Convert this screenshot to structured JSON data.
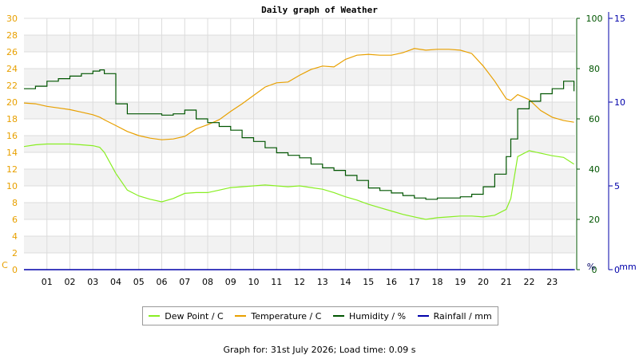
{
  "title": "Daily graph of Weather",
  "footer": "Graph for: 31st July 2026; Load time: 0.09 s",
  "legend": {
    "dew_point": "Dew Point / C",
    "temperature": "Temperature / C",
    "humidity": "Humidity / %",
    "rainfall": "Rainfall / mm"
  },
  "colors": {
    "dew_point": "#88ee22",
    "temperature": "#e8a000",
    "humidity": "#005500",
    "rainfall": "#0000aa",
    "band": "#f2f2f2",
    "grid": "#dcdcdc"
  },
  "chart_data": {
    "type": "line",
    "title": "Daily graph of Weather",
    "x": [
      0,
      0.5,
      1,
      1.5,
      2,
      2.5,
      3,
      3.3,
      3.5,
      4,
      4.5,
      5,
      5.5,
      6,
      6.5,
      7,
      7.5,
      8,
      8.5,
      9,
      9.5,
      10,
      10.5,
      11,
      11.5,
      12,
      12.5,
      13,
      13.5,
      14,
      14.5,
      15,
      15.5,
      16,
      16.5,
      17,
      17.5,
      18,
      18.5,
      19,
      19.5,
      20,
      20.5,
      21,
      21.2,
      21.5,
      22,
      22.5,
      23,
      23.5,
      23.95
    ],
    "x_ticks": [
      "01",
      "02",
      "03",
      "04",
      "05",
      "06",
      "07",
      "08",
      "09",
      "10",
      "11",
      "12",
      "13",
      "14",
      "15",
      "16",
      "17",
      "18",
      "19",
      "20",
      "21",
      "22",
      "23"
    ],
    "x_range": [
      0,
      24
    ],
    "axes": {
      "left": {
        "unit": "C",
        "range": [
          0,
          30
        ],
        "ticks": [
          "0",
          "2",
          "4",
          "6",
          "8",
          "10",
          "12",
          "14",
          "16",
          "18",
          "20",
          "22",
          "24",
          "26",
          "28",
          "30"
        ]
      },
      "right_humidity": {
        "unit": "%",
        "range": [
          0,
          100
        ],
        "ticks": [
          "0",
          "20",
          "40",
          "60",
          "80",
          "100"
        ]
      },
      "right_rainfall": {
        "unit": "mm",
        "range": [
          0,
          15
        ],
        "ticks": [
          "0",
          "5",
          "10",
          "15"
        ]
      }
    },
    "series": [
      {
        "name": "Dew Point / C",
        "axis": "left",
        "color": "#88ee22",
        "values": [
          14.7,
          14.9,
          15.0,
          15.0,
          15.0,
          14.9,
          14.8,
          14.6,
          14.0,
          11.5,
          9.5,
          8.8,
          8.4,
          8.1,
          8.5,
          9.1,
          9.2,
          9.2,
          9.5,
          9.8,
          9.9,
          10.0,
          10.1,
          10.0,
          9.9,
          10.0,
          9.8,
          9.6,
          9.2,
          8.7,
          8.3,
          7.8,
          7.4,
          7.0,
          6.6,
          6.3,
          6.0,
          6.2,
          6.3,
          6.4,
          6.4,
          6.3,
          6.5,
          7.2,
          8.5,
          13.5,
          14.2,
          13.9,
          13.6,
          13.4,
          12.6
        ]
      },
      {
        "name": "Temperature / C",
        "axis": "left",
        "color": "#e8a000",
        "values": [
          19.9,
          19.8,
          19.5,
          19.3,
          19.1,
          18.8,
          18.5,
          18.2,
          17.9,
          17.2,
          16.5,
          16.0,
          15.7,
          15.5,
          15.6,
          15.9,
          16.8,
          17.3,
          17.9,
          18.9,
          19.8,
          20.8,
          21.8,
          22.3,
          22.4,
          23.2,
          23.9,
          24.3,
          24.2,
          25.1,
          25.6,
          25.7,
          25.6,
          25.6,
          25.9,
          26.4,
          26.2,
          26.3,
          26.3,
          26.2,
          25.8,
          24.3,
          22.5,
          20.4,
          20.2,
          20.9,
          20.3,
          19.0,
          18.2,
          17.8,
          17.6
        ]
      },
      {
        "name": "Humidity / %",
        "axis": "right_humidity",
        "color": "#005500",
        "values": [
          72,
          73,
          75,
          76,
          77,
          78,
          79,
          79.5,
          78,
          66,
          62,
          62,
          62,
          61.5,
          62,
          63.5,
          60,
          58.5,
          57,
          55.5,
          52.5,
          51,
          48.5,
          46.5,
          45.5,
          44.5,
          42,
          40.5,
          39.5,
          37.5,
          35.5,
          32.5,
          31.5,
          30.5,
          29.5,
          28.5,
          28,
          28.5,
          28.5,
          29,
          30,
          33,
          38,
          45,
          52,
          64,
          67,
          70,
          72,
          75,
          71
        ]
      },
      {
        "name": "Rainfall / mm",
        "axis": "right_rainfall",
        "color": "#0000aa",
        "values": [
          0,
          0,
          0,
          0,
          0,
          0,
          0,
          0,
          0,
          0,
          0,
          0,
          0,
          0,
          0,
          0,
          0,
          0,
          0,
          0,
          0,
          0,
          0,
          0,
          0,
          0,
          0,
          0,
          0,
          0,
          0,
          0,
          0,
          0,
          0,
          0,
          0,
          0,
          0,
          0,
          0,
          0,
          0,
          0,
          0,
          0,
          0,
          0,
          0,
          0,
          0
        ]
      }
    ],
    "grid": true,
    "legend_position": "bottom"
  }
}
